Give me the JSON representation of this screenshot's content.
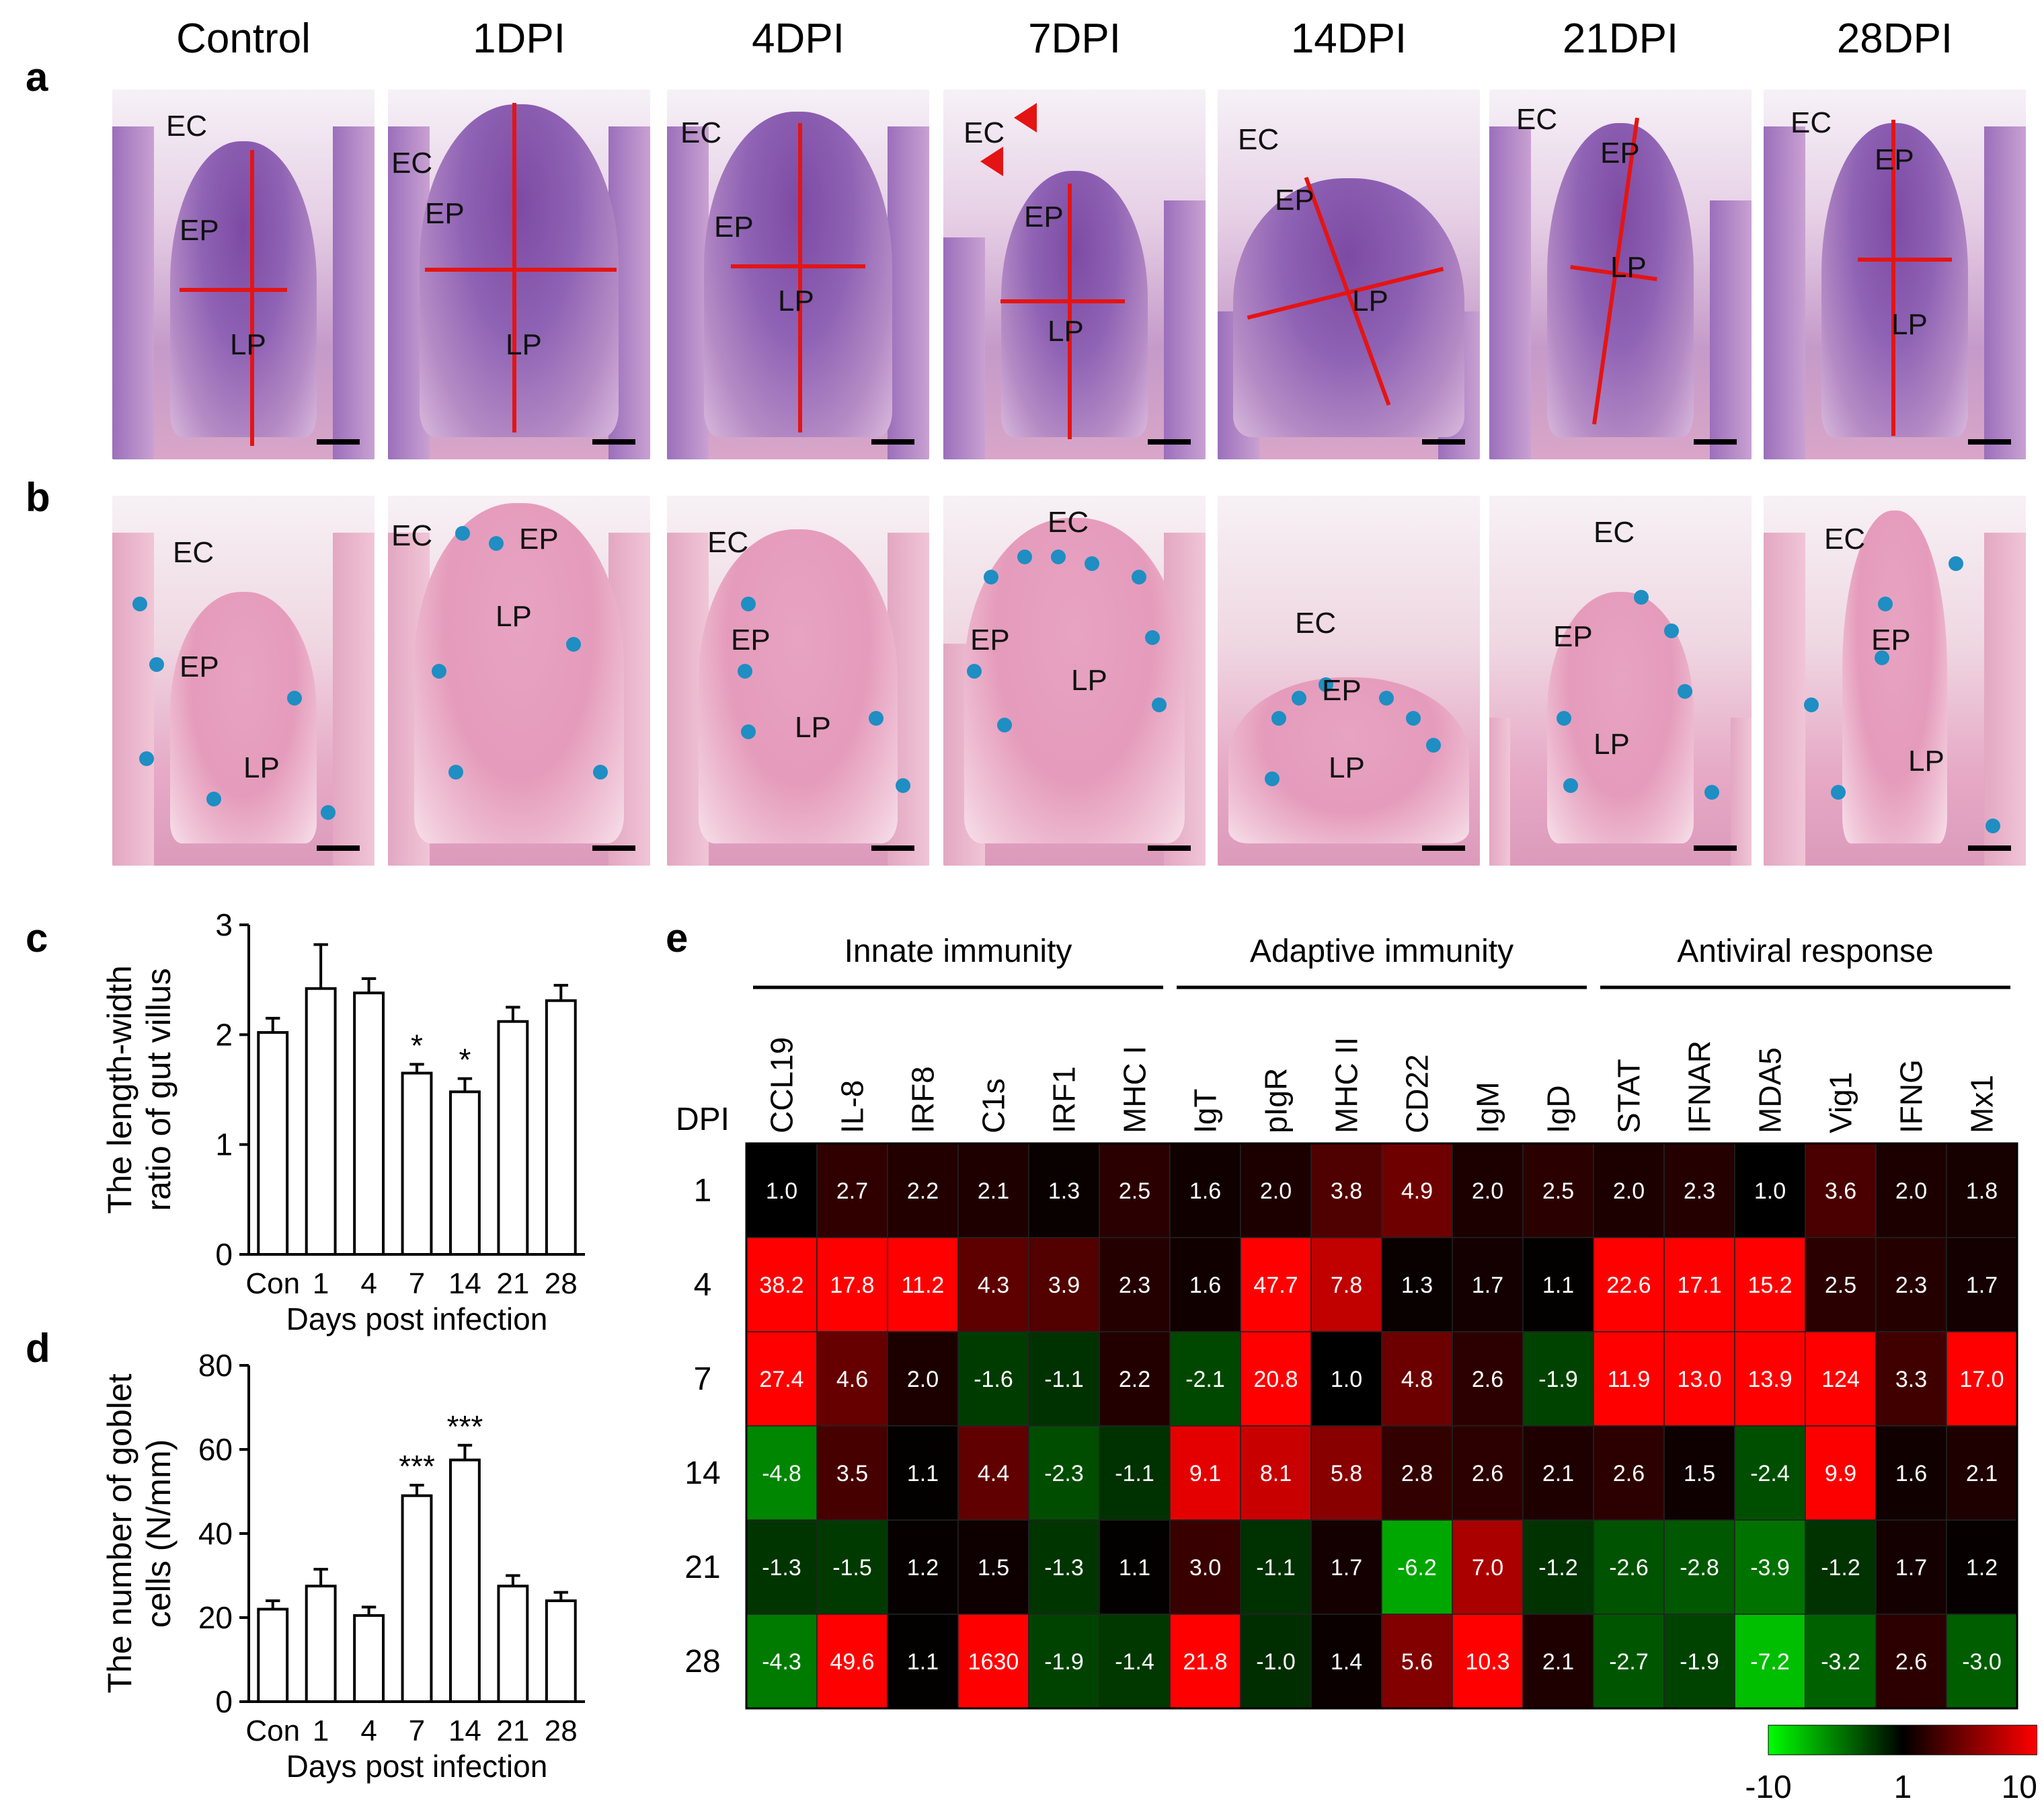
{
  "panels": {
    "a": "a",
    "b": "b",
    "c": "c",
    "d": "d",
    "e": "e"
  },
  "micrographs": {
    "columns": [
      "Control",
      "1DPI",
      "4DPI",
      "7DPI",
      "14DPI",
      "21DPI",
      "28DPI"
    ],
    "row_a_labels": {
      "EC": "EC",
      "EP": "EP",
      "LP": "LP"
    }
  },
  "chart_data": [
    {
      "type": "bar",
      "panel": "c",
      "categories": [
        "Con",
        "1",
        "4",
        "7",
        "14",
        "21",
        "28"
      ],
      "values": [
        2.02,
        2.42,
        2.38,
        1.65,
        1.48,
        2.12,
        2.31
      ],
      "errors": [
        0.13,
        0.4,
        0.13,
        0.08,
        0.12,
        0.13,
        0.14
      ],
      "significance": [
        "",
        "",
        "",
        "*",
        "*",
        "",
        ""
      ],
      "xlabel": "Days post infection",
      "ylabel": "The length-width ratio of gut villus",
      "ylabel_lines": [
        "The length-width",
        "ratio of gut villus"
      ],
      "ylim": [
        0,
        3
      ],
      "yticks": [
        0,
        1,
        2,
        3
      ]
    },
    {
      "type": "bar",
      "panel": "d",
      "categories": [
        "Con",
        "1",
        "4",
        "7",
        "14",
        "21",
        "28"
      ],
      "values": [
        22,
        27.5,
        20.5,
        49,
        57.5,
        27.5,
        24
      ],
      "errors": [
        2,
        4,
        2,
        2.5,
        3.5,
        2.5,
        2
      ],
      "significance": [
        "",
        "",
        "",
        "***",
        "***",
        "",
        ""
      ],
      "xlabel": "Days post infection",
      "ylabel": "The number of goblet cells (N/mm)",
      "ylabel_lines": [
        "The number of goblet",
        "cells (N/mm)"
      ],
      "ylim": [
        0,
        80
      ],
      "yticks": [
        0,
        20,
        40,
        60,
        80
      ]
    },
    {
      "type": "heatmap",
      "panel": "e",
      "groups": [
        {
          "name": "Innate immunity",
          "span": [
            0,
            5
          ]
        },
        {
          "name": "Adaptive immunity",
          "span": [
            6,
            11
          ]
        },
        {
          "name": "Antiviral response",
          "span": [
            12,
            17
          ]
        }
      ],
      "row_axis_label": "DPI",
      "columns": [
        "CCL19",
        "IL-8",
        "IRF8",
        "C1s",
        "IRF1",
        "MHC I",
        "IgT",
        "pIgR",
        "MHC II",
        "CD22",
        "IgM",
        "IgD",
        "STAT",
        "IFNAR",
        "MDA5",
        "Vig1",
        "IFNG",
        "Mx1"
      ],
      "rows": [
        "1",
        "4",
        "7",
        "14",
        "21",
        "28"
      ],
      "values": [
        [
          "1.0",
          "2.7",
          "2.2",
          "2.1",
          "1.3",
          "2.5",
          "1.6",
          "2.0",
          "3.8",
          "4.9",
          "2.0",
          "2.5",
          "2.0",
          "2.3",
          "1.0",
          "3.6",
          "2.0",
          "1.8"
        ],
        [
          "38.2",
          "17.8",
          "11.2",
          "4.3",
          "3.9",
          "2.3",
          "1.6",
          "47.7",
          "7.8",
          "1.3",
          "1.7",
          "1.1",
          "22.6",
          "17.1",
          "15.2",
          "2.5",
          "2.3",
          "1.7"
        ],
        [
          "27.4",
          "4.6",
          "2.0",
          "-1.6",
          "-1.1",
          "2.2",
          "-2.1",
          "20.8",
          "1.0",
          "4.8",
          "2.6",
          "-1.9",
          "11.9",
          "13.0",
          "13.9",
          "124",
          "3.3",
          "17.0"
        ],
        [
          "-4.8",
          "3.5",
          "1.1",
          "4.4",
          "-2.3",
          "-1.1",
          "9.1",
          "8.1",
          "5.8",
          "2.8",
          "2.6",
          "2.1",
          "2.6",
          "1.5",
          "-2.4",
          "9.9",
          "1.6",
          "2.1"
        ],
        [
          "-1.3",
          "-1.5",
          "1.2",
          "1.5",
          "-1.3",
          "1.1",
          "3.0",
          "-1.1",
          "1.7",
          "-6.2",
          "7.0",
          "-1.2",
          "-2.6",
          "-2.8",
          "-3.9",
          "-1.2",
          "1.7",
          "1.2"
        ],
        [
          "-4.3",
          "49.6",
          "1.1",
          "1630",
          "-1.9",
          "-1.4",
          "21.8",
          "-1.0",
          "1.4",
          "5.6",
          "10.3",
          "2.1",
          "-2.7",
          "-1.9",
          "-7.2",
          "-3.2",
          "2.6",
          "-3.0"
        ]
      ],
      "colorbar": {
        "ticks": [
          "-10",
          "1",
          "10"
        ],
        "low": "#00ff00",
        "mid": "#000000",
        "high": "#ff0000"
      }
    }
  ]
}
